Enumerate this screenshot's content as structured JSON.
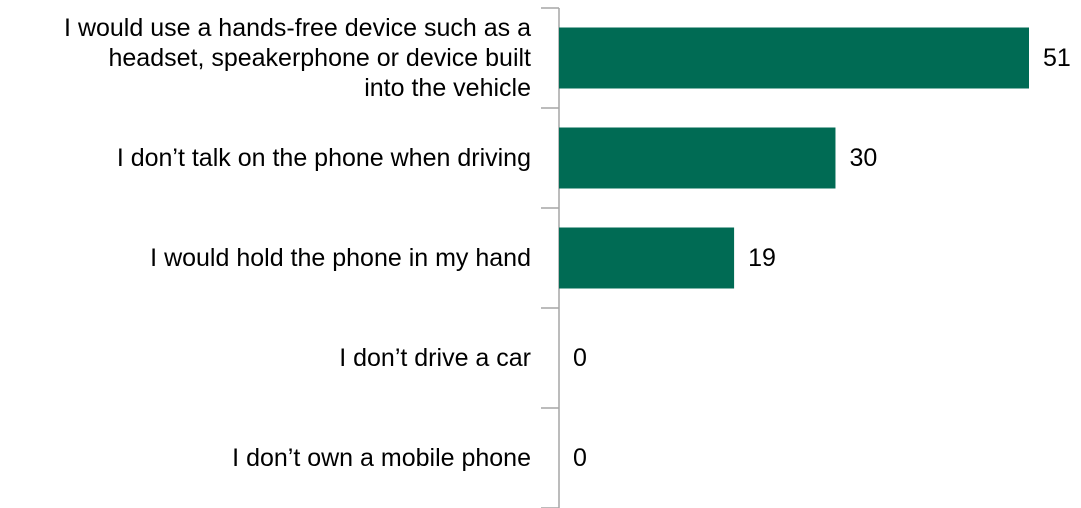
{
  "chart_data": {
    "type": "bar",
    "orientation": "horizontal",
    "categories": [
      "I would use a hands-free device such as a\nheadset, speakerphone or device built\ninto the vehicle",
      "I don’t talk on the phone when driving",
      "I would hold the phone in my hand",
      "I don’t drive a car",
      "I don’t own a mobile phone"
    ],
    "values": [
      51,
      30,
      19,
      0,
      0
    ],
    "data_labels": [
      "51",
      "30",
      "19",
      "0",
      "0"
    ],
    "title": "",
    "xlabel": "",
    "ylabel": "",
    "xlim": [
      0,
      51
    ],
    "grid": false,
    "legend": "none",
    "bar_color": "#006b54",
    "axis_color": "#a6a6a6"
  }
}
